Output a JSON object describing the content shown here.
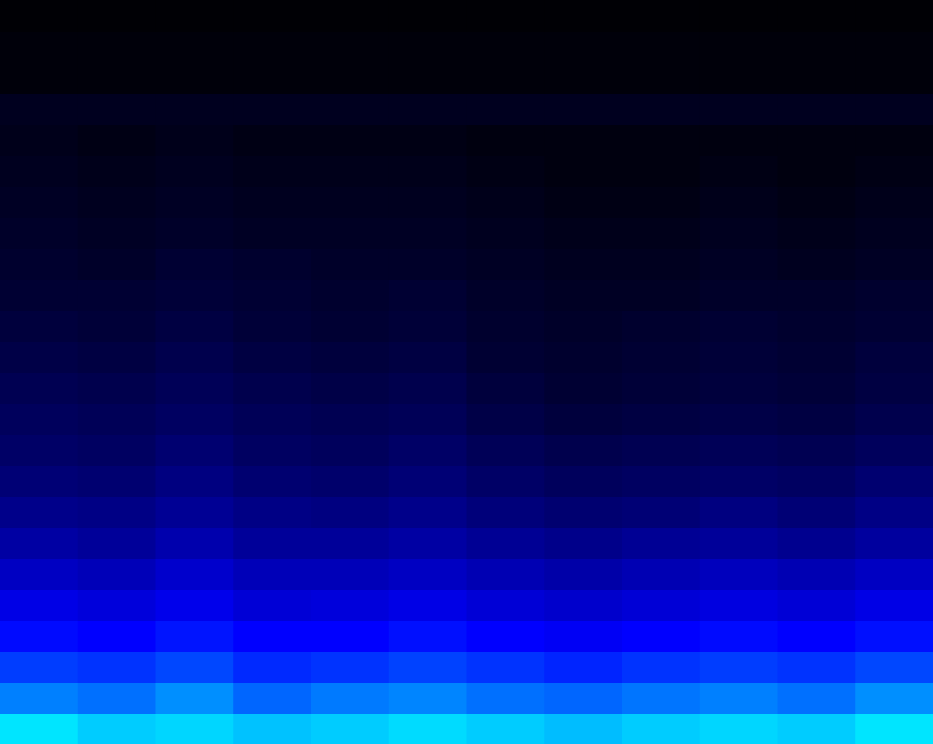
{
  "chart_data": {
    "type": "heatmap",
    "xlim": [
      0,
      12
    ],
    "ylim": [
      0,
      24
    ],
    "tick_labels": false,
    "grid": false,
    "color_range": [
      0,
      1
    ],
    "colors": [
      "#000000",
      "#0000ff",
      "#00ffff"
    ],
    "cells": [
      [
        0.95,
        0.9,
        0.92,
        0.88,
        0.9,
        0.93,
        0.9,
        0.87,
        0.9,
        0.92,
        0.9,
        0.95
      ],
      [
        0.75,
        0.72,
        0.78,
        0.7,
        0.74,
        0.76,
        0.72,
        0.7,
        0.73,
        0.75,
        0.72,
        0.78
      ],
      [
        0.62,
        0.6,
        0.64,
        0.58,
        0.6,
        0.63,
        0.6,
        0.57,
        0.6,
        0.62,
        0.6,
        0.64
      ],
      [
        0.52,
        0.5,
        0.54,
        0.5,
        0.5,
        0.53,
        0.5,
        0.48,
        0.5,
        0.52,
        0.5,
        0.53
      ],
      [
        0.45,
        0.43,
        0.46,
        0.42,
        0.43,
        0.45,
        0.42,
        0.4,
        0.42,
        0.44,
        0.42,
        0.45
      ],
      [
        0.38,
        0.36,
        0.4,
        0.36,
        0.36,
        0.38,
        0.35,
        0.33,
        0.35,
        0.37,
        0.35,
        0.38
      ],
      [
        0.32,
        0.3,
        0.34,
        0.3,
        0.3,
        0.32,
        0.29,
        0.27,
        0.29,
        0.3,
        0.28,
        0.31
      ],
      [
        0.27,
        0.26,
        0.29,
        0.26,
        0.25,
        0.27,
        0.24,
        0.22,
        0.23,
        0.25,
        0.23,
        0.26
      ],
      [
        0.23,
        0.22,
        0.25,
        0.22,
        0.21,
        0.23,
        0.2,
        0.18,
        0.19,
        0.2,
        0.19,
        0.22
      ],
      [
        0.2,
        0.19,
        0.22,
        0.19,
        0.18,
        0.2,
        0.17,
        0.15,
        0.16,
        0.17,
        0.16,
        0.18
      ],
      [
        0.18,
        0.17,
        0.19,
        0.17,
        0.16,
        0.17,
        0.14,
        0.12,
        0.13,
        0.14,
        0.13,
        0.15
      ],
      [
        0.16,
        0.15,
        0.17,
        0.15,
        0.14,
        0.15,
        0.12,
        0.1,
        0.11,
        0.12,
        0.11,
        0.13
      ],
      [
        0.14,
        0.13,
        0.15,
        0.13,
        0.12,
        0.13,
        0.1,
        0.09,
        0.1,
        0.11,
        0.1,
        0.12
      ],
      [
        0.12,
        0.11,
        0.13,
        0.11,
        0.1,
        0.11,
        0.09,
        0.08,
        0.09,
        0.1,
        0.09,
        0.1
      ],
      [
        0.1,
        0.1,
        0.11,
        0.1,
        0.09,
        0.1,
        0.08,
        0.07,
        0.07,
        0.08,
        0.08,
        0.09
      ],
      [
        0.09,
        0.08,
        0.1,
        0.09,
        0.08,
        0.08,
        0.07,
        0.06,
        0.06,
        0.07,
        0.06,
        0.07
      ],
      [
        0.08,
        0.07,
        0.08,
        0.07,
        0.07,
        0.07,
        0.06,
        0.05,
        0.05,
        0.06,
        0.05,
        0.06
      ],
      [
        0.07,
        0.06,
        0.07,
        0.06,
        0.06,
        0.06,
        0.05,
        0.04,
        0.04,
        0.05,
        0.04,
        0.05
      ],
      [
        0.06,
        0.05,
        0.06,
        0.05,
        0.05,
        0.05,
        0.04,
        0.03,
        0.03,
        0.04,
        0.03,
        0.04
      ],
      [
        0.05,
        0.04,
        0.05,
        0.04,
        0.04,
        0.04,
        0.03,
        0.03,
        0.03,
        0.03,
        0.03,
        0.03
      ],
      [
        0.06,
        0.06,
        0.06,
        0.06,
        0.06,
        0.06,
        0.06,
        0.06,
        0.06,
        0.06,
        0.06,
        0.06
      ],
      [
        0.02,
        0.02,
        0.02,
        0.02,
        0.02,
        0.02,
        0.02,
        0.02,
        0.02,
        0.02,
        0.02,
        0.02
      ],
      [
        0.02,
        0.02,
        0.02,
        0.02,
        0.02,
        0.02,
        0.02,
        0.02,
        0.02,
        0.02,
        0.02,
        0.02
      ],
      [
        0.01,
        0.01,
        0.01,
        0.01,
        0.01,
        0.01,
        0.01,
        0.01,
        0.01,
        0.01,
        0.01,
        0.01
      ]
    ]
  }
}
